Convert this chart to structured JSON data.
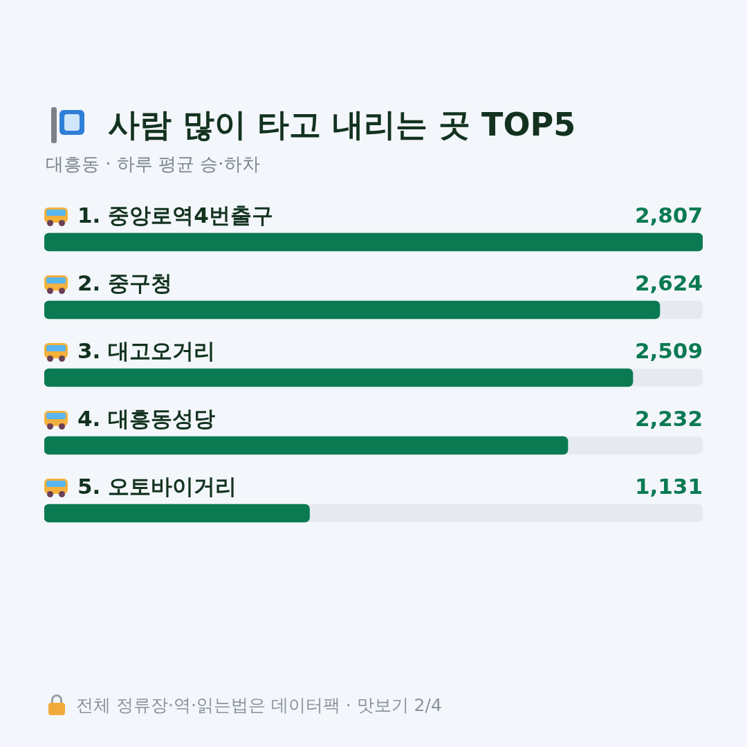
{
  "chart_data": {
    "type": "bar",
    "orientation": "horizontal",
    "title": "사람 많이 타고 내리는 곳 TOP5",
    "subtitle": "대흥동 · 하루 평균 승·하차",
    "categories": [
      "1. 중앙로역4번출구",
      "2. 중구청",
      "3. 대고오거리",
      "4. 대흥동성당",
      "5. 오토바이거리"
    ],
    "values": [
      2807,
      2624,
      2509,
      2232,
      1131
    ],
    "color": "#0b7a52",
    "value_labels": [
      "2,807",
      "2,624",
      "2,509",
      "2,232",
      "1,131"
    ],
    "tick_labels": false,
    "legend": false,
    "annotations": [
      "전체 정류장·역·읽는법은 데이터팩 · 맛보기 2/4"
    ]
  }
}
